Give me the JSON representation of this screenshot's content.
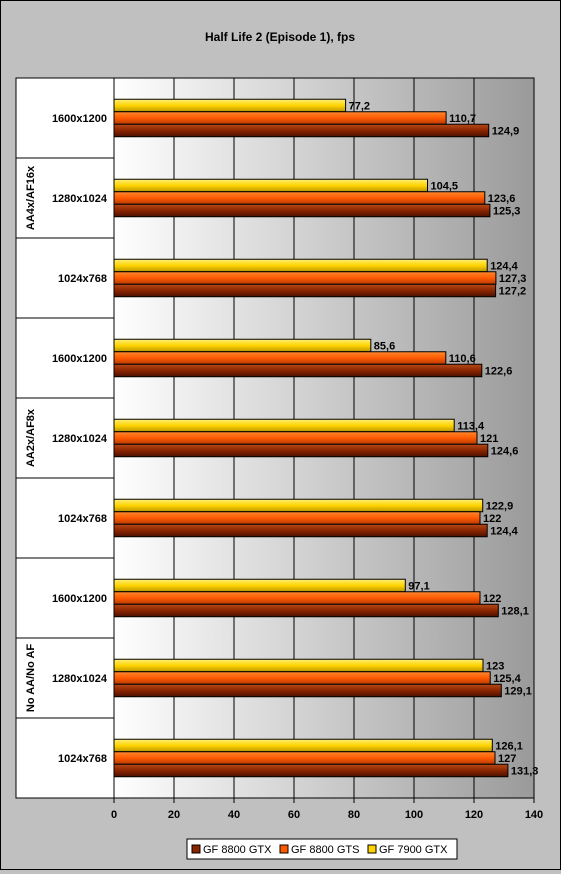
{
  "chart_data": {
    "type": "bar",
    "orientation": "horizontal",
    "title": "Half Life 2 (Episode 1), fps",
    "xlim": [
      0,
      140
    ],
    "xticks": [
      0,
      20,
      40,
      60,
      80,
      100,
      120,
      140
    ],
    "grid": true,
    "legend_position": "bottom",
    "groups": [
      {
        "label": "AA4x/AF16x",
        "categories": [
          "1600x1200",
          "1280x1024",
          "1024x768"
        ]
      },
      {
        "label": "AA2x/AF8x",
        "categories": [
          "1600x1200",
          "1280x1024",
          "1024x768"
        ]
      },
      {
        "label": "No AA/No AF",
        "categories": [
          "1600x1200",
          "1280x1024",
          "1024x768"
        ]
      }
    ],
    "series": [
      {
        "name": "GF 8800 GTX",
        "color": "#8b2500",
        "values": [
          [
            124.9,
            125.3,
            127.2
          ],
          [
            122.6,
            124.6,
            124.4
          ],
          [
            128.1,
            129.1,
            131.3
          ]
        ],
        "labels": [
          [
            "124,9",
            "125,3",
            "127,2"
          ],
          [
            "122,6",
            "124,6",
            "124,4"
          ],
          [
            "128,1",
            "129,1",
            "131,3"
          ]
        ]
      },
      {
        "name": "GF 8800 GTS",
        "color": "#ff5a00",
        "values": [
          [
            110.7,
            123.6,
            127.3
          ],
          [
            110.6,
            121,
            122
          ],
          [
            122,
            125.4,
            127
          ]
        ],
        "labels": [
          [
            "110,7",
            "123,6",
            "127,3"
          ],
          [
            "110,6",
            "121",
            "122"
          ],
          [
            "122",
            "125,4",
            "127"
          ]
        ]
      },
      {
        "name": "GF 7900 GTX",
        "color": "#ffd400",
        "values": [
          [
            77.2,
            104.5,
            124.4
          ],
          [
            85.6,
            113.4,
            122.9
          ],
          [
            97.1,
            123,
            126.1
          ]
        ],
        "labels": [
          [
            "77,2",
            "104,5",
            "124,4"
          ],
          [
            "85,6",
            "113,4",
            "122,9"
          ],
          [
            "97,1",
            "123",
            "126,1"
          ]
        ]
      }
    ]
  }
}
